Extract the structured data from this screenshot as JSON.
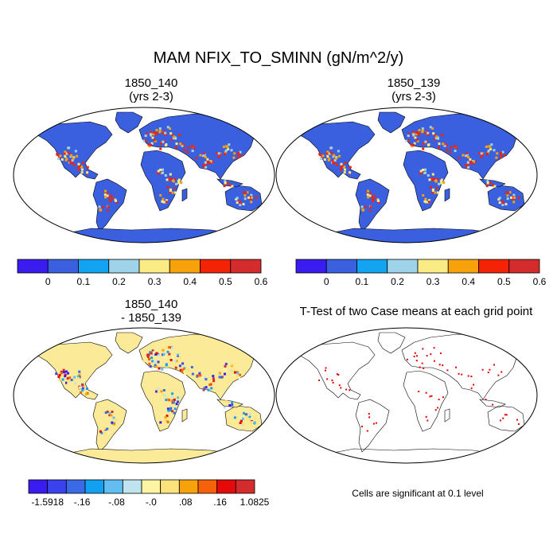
{
  "title": "MAM NFIX_TO_SMINN (gN/m^2/y)",
  "panels": [
    {
      "title_line1": "1850_140",
      "title_line2": "(yrs 2-3)"
    },
    {
      "title_line1": "1850_139",
      "title_line2": "(yrs 2-3)"
    },
    {
      "title_line1": "1850_140",
      "title_line2": "- 1850_139"
    },
    {
      "title_line1": "T-Test of two Case means at each grid point",
      "title_line2": ""
    }
  ],
  "colorbar_top": {
    "colors": [
      "#3a1cf0",
      "#3a60e0",
      "#12a4f0",
      "#9fd3ea",
      "#fbeb84",
      "#f7a20a",
      "#f42306",
      "#d42c2c"
    ],
    "labels": [
      "0",
      "0.1",
      "0.2",
      "0.3",
      "0.4",
      "0.5",
      "0.6"
    ]
  },
  "colorbar_diff": {
    "colors": [
      "#3a1cf0",
      "#3a42ee",
      "#3a6ae6",
      "#12a0f0",
      "#62bdf0",
      "#bfe4f0",
      "#fdf5a4",
      "#fbe27a",
      "#f7a20a",
      "#f6610a",
      "#e6090a",
      "#d42c2c"
    ],
    "labels": [
      "-1.5918",
      "-.16",
      "-.08",
      "-.0",
      ".08",
      ".16",
      "1.0825"
    ]
  },
  "note": "Cells are significant at 0.1 level",
  "map_colors": {
    "ocean": "#ffffff",
    "land_low": "#3a60e0",
    "land_diff": "#fbeb98",
    "significant": "#e00000",
    "coast": "#000000"
  }
}
